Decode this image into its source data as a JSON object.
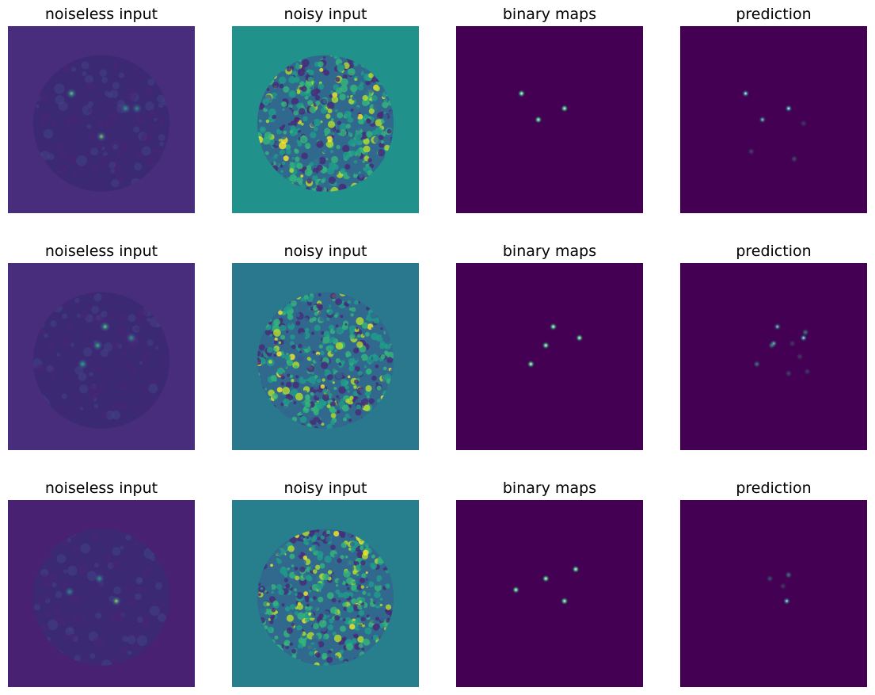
{
  "figure": {
    "rows": [
      {
        "panels": [
          {
            "title": "noiseless input",
            "kind": "noiseless",
            "bg": "#472d7b",
            "disk": "#3b2a73",
            "seed": 11,
            "spots": [
              [
                0.34,
                0.36,
                1.0,
                "#6ece58"
              ],
              [
                0.63,
                0.44,
                0.8,
                "#35b779"
              ],
              [
                0.69,
                0.44,
                0.7,
                "#35b779"
              ],
              [
                0.5,
                0.59,
                0.9,
                "#b5de2b"
              ]
            ]
          },
          {
            "title": "noisy input",
            "kind": "noisy",
            "bg": "#21918c",
            "seed": 21
          },
          {
            "title": "binary maps",
            "kind": "binary",
            "bg": "#440154",
            "spots": [
              [
                0.35,
                0.36
              ],
              [
                0.58,
                0.44
              ],
              [
                0.44,
                0.5
              ]
            ]
          },
          {
            "title": "prediction",
            "kind": "prediction",
            "bg": "#440154",
            "spots": [
              [
                0.35,
                0.36,
                1.0
              ],
              [
                0.58,
                0.44,
                1.0
              ],
              [
                0.44,
                0.5,
                0.8
              ],
              [
                0.66,
                0.52,
                0.3
              ],
              [
                0.38,
                0.67,
                0.35
              ],
              [
                0.61,
                0.71,
                0.4
              ]
            ]
          }
        ]
      },
      {
        "panels": [
          {
            "title": "noiseless input",
            "kind": "noiseless",
            "bg": "#472d7b",
            "disk": "#3b2a73",
            "seed": 12,
            "spots": [
              [
                0.52,
                0.34,
                1.0,
                "#7ad151"
              ],
              [
                0.66,
                0.4,
                0.8,
                "#35b779"
              ],
              [
                0.48,
                0.44,
                0.9,
                "#4ac16d"
              ],
              [
                0.4,
                0.54,
                0.9,
                "#35b779"
              ]
            ]
          },
          {
            "title": "noisy input",
            "kind": "noisy",
            "bg": "#2a788e",
            "seed": 22
          },
          {
            "title": "binary maps",
            "kind": "binary",
            "bg": "#440154",
            "spots": [
              [
                0.52,
                0.34
              ],
              [
                0.66,
                0.4
              ],
              [
                0.48,
                0.44
              ],
              [
                0.4,
                0.54
              ]
            ]
          },
          {
            "title": "prediction",
            "kind": "prediction",
            "bg": "#440154",
            "spots": [
              [
                0.52,
                0.34,
                0.8
              ],
              [
                0.66,
                0.4,
                0.9
              ],
              [
                0.67,
                0.37,
                0.6
              ],
              [
                0.5,
                0.43,
                0.8
              ],
              [
                0.49,
                0.44,
                0.6
              ],
              [
                0.41,
                0.54,
                0.6
              ],
              [
                0.6,
                0.43,
                0.3
              ],
              [
                0.64,
                0.5,
                0.3
              ],
              [
                0.58,
                0.59,
                0.35
              ],
              [
                0.68,
                0.58,
                0.3
              ]
            ]
          }
        ]
      },
      {
        "panels": [
          {
            "title": "noiseless input",
            "kind": "noiseless",
            "bg": "#482173",
            "disk": "#3b2a73",
            "seed": 13,
            "spots": [
              [
                0.49,
                0.42,
                0.8,
                "#35b779"
              ],
              [
                0.33,
                0.49,
                0.7,
                "#35b779"
              ],
              [
                0.58,
                0.54,
                1.0,
                "#b5de2b"
              ]
            ]
          },
          {
            "title": "noisy input",
            "kind": "noisy",
            "bg": "#277f8e",
            "seed": 23
          },
          {
            "title": "binary maps",
            "kind": "binary",
            "bg": "#440154",
            "spots": [
              [
                0.64,
                0.37
              ],
              [
                0.48,
                0.42
              ],
              [
                0.32,
                0.48
              ],
              [
                0.58,
                0.54
              ]
            ]
          },
          {
            "title": "prediction",
            "kind": "prediction",
            "bg": "#440154",
            "spots": [
              [
                0.58,
                0.4,
                0.6
              ],
              [
                0.48,
                0.42,
                0.4
              ],
              [
                0.57,
                0.54,
                0.9
              ],
              [
                0.55,
                0.46,
                0.3
              ]
            ]
          }
        ]
      }
    ]
  }
}
